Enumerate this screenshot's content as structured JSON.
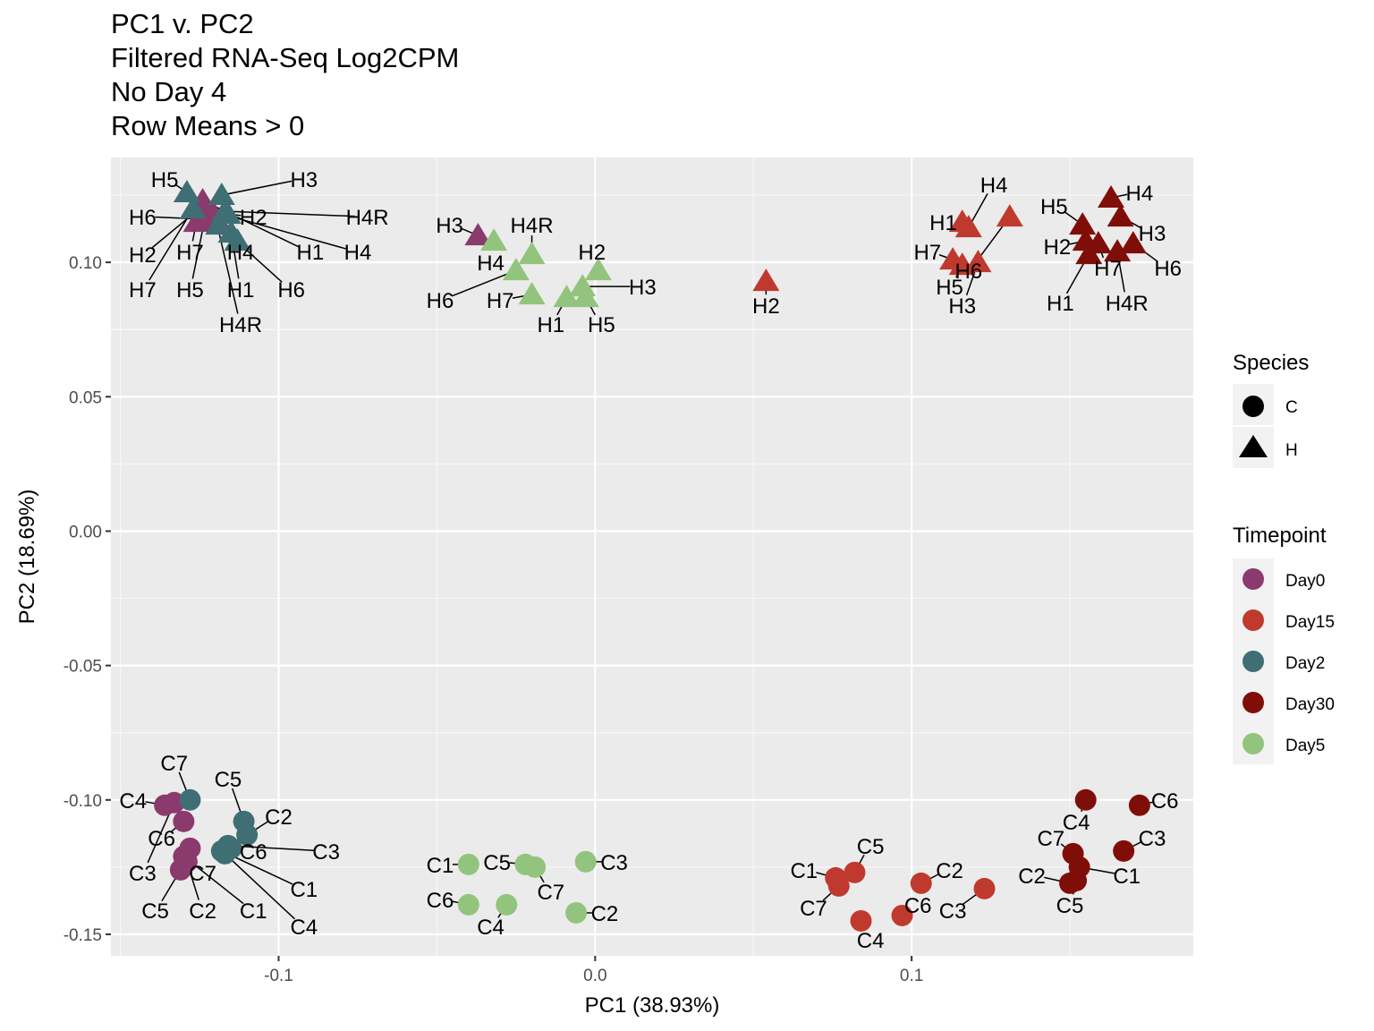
{
  "chart_data": {
    "type": "scatter",
    "title": [
      "PC1 v. PC2",
      "Filtered RNA-Seq Log2CPM",
      "No Day 4",
      "Row Means > 0"
    ],
    "xlabel": "PC1 (38.93%)",
    "ylabel": "PC2 (18.69%)",
    "xlim": [
      -0.153,
      0.189
    ],
    "ylim": [
      -0.158,
      0.139
    ],
    "x_ticks": [
      -0.1,
      0.0,
      0.1
    ],
    "x_tick_labels": [
      "-0.1",
      "0.0",
      "0.1"
    ],
    "y_ticks": [
      0.1,
      0.05,
      0.0,
      -0.05,
      -0.1,
      -0.15
    ],
    "y_tick_labels": [
      "0.10",
      "0.05",
      "0.00",
      "-0.05",
      "-0.10",
      "-0.15"
    ],
    "grid": true,
    "legend": [
      {
        "title": "Species",
        "position": "right",
        "entries": [
          {
            "label": "C",
            "shape": "circle"
          },
          {
            "label": "H",
            "shape": "triangle"
          }
        ]
      },
      {
        "title": "Timepoint",
        "position": "right",
        "entries": [
          {
            "label": "Day0",
            "color": "#8B3A6E"
          },
          {
            "label": "Day15",
            "color": "#C0392F"
          },
          {
            "label": "Day2",
            "color": "#3F6E74"
          },
          {
            "label": "Day30",
            "color": "#800E08"
          },
          {
            "label": "Day5",
            "color": "#93C47D"
          }
        ]
      }
    ],
    "colors": {
      "Day0": "#8B3A6E",
      "Day15": "#C0392F",
      "Day2": "#3F6E74",
      "Day30": "#800E08",
      "Day5": "#93C47D"
    },
    "series": [
      {
        "name": "Day0",
        "points": [
          {
            "label": "H3",
            "species": "H",
            "x": -0.037,
            "y": 0.11,
            "label_x": -0.046,
            "label_y": 0.114
          },
          {
            "label": "H1",
            "species": "H",
            "x": -0.124,
            "y": 0.123,
            "label_x": -0.09,
            "label_y": 0.104
          },
          {
            "label": "H2",
            "species": "H",
            "x": -0.125,
            "y": 0.12,
            "label_x": -0.143,
            "label_y": 0.103
          },
          {
            "label": "H7",
            "species": "H",
            "x": -0.126,
            "y": 0.115,
            "label_x": -0.128,
            "label_y": 0.104
          },
          {
            "label": "H5",
            "species": "H",
            "x": -0.123,
            "y": 0.118,
            "label_x": -0.128,
            "label_y": 0.09
          },
          {
            "label": "H6",
            "species": "H",
            "x": -0.122,
            "y": 0.116,
            "label_x": -0.143,
            "label_y": 0.117
          },
          {
            "label": "H4",
            "species": "H",
            "x": -0.121,
            "y": 0.119,
            "label_x": -0.075,
            "label_y": 0.104
          },
          {
            "label": "H4R",
            "species": "H",
            "x": -0.12,
            "y": 0.117,
            "label_x": -0.112,
            "label_y": 0.077
          },
          {
            "label": "C4",
            "species": "C",
            "x": -0.136,
            "y": -0.102,
            "label_x": -0.146,
            "label_y": -0.1
          },
          {
            "label": "C6",
            "species": "C",
            "x": -0.13,
            "y": -0.108,
            "label_x": -0.137,
            "label_y": -0.114
          },
          {
            "label": "C3",
            "species": "C",
            "x": -0.133,
            "y": -0.101,
            "label_x": -0.143,
            "label_y": -0.127
          },
          {
            "label": "C7",
            "species": "C",
            "x": -0.128,
            "y": -0.118,
            "label_x": -0.124,
            "label_y": -0.127
          },
          {
            "label": "C5",
            "species": "C",
            "x": -0.131,
            "y": -0.126,
            "label_x": -0.139,
            "label_y": -0.141
          },
          {
            "label": "C2",
            "species": "C",
            "x": -0.129,
            "y": -0.123,
            "label_x": -0.124,
            "label_y": -0.141
          },
          {
            "label": "C1",
            "species": "C",
            "x": -0.13,
            "y": -0.121,
            "label_x": -0.108,
            "label_y": -0.141
          }
        ]
      },
      {
        "name": "Day2",
        "points": [
          {
            "label": "H5",
            "species": "H",
            "x": -0.129,
            "y": 0.126,
            "label_x": -0.136,
            "label_y": 0.131
          },
          {
            "label": "H3",
            "species": "H",
            "x": -0.118,
            "y": 0.125,
            "label_x": -0.092,
            "label_y": 0.131
          },
          {
            "label": "H2",
            "species": "H",
            "x": -0.116,
            "y": 0.118,
            "label_x": -0.108,
            "label_y": 0.117
          },
          {
            "label": "H4R",
            "species": "H",
            "x": -0.117,
            "y": 0.119,
            "label_x": -0.072,
            "label_y": 0.117
          },
          {
            "label": "H1",
            "species": "H",
            "x": -0.115,
            "y": 0.111,
            "label_x": -0.112,
            "label_y": 0.09
          },
          {
            "label": "H4",
            "species": "H",
            "x": -0.113,
            "y": 0.108,
            "label_x": -0.112,
            "label_y": 0.104
          },
          {
            "label": "H6",
            "species": "H",
            "x": -0.119,
            "y": 0.114,
            "label_x": -0.096,
            "label_y": 0.09
          },
          {
            "label": "H7",
            "species": "H",
            "x": -0.127,
            "y": 0.12,
            "label_x": -0.143,
            "label_y": 0.09
          },
          {
            "label": "C7",
            "species": "C",
            "x": -0.128,
            "y": -0.1,
            "label_x": -0.133,
            "label_y": -0.086
          },
          {
            "label": "C5",
            "species": "C",
            "x": -0.111,
            "y": -0.108,
            "label_x": -0.116,
            "label_y": -0.092
          },
          {
            "label": "C2",
            "species": "C",
            "x": -0.11,
            "y": -0.113,
            "label_x": -0.1,
            "label_y": -0.106
          },
          {
            "label": "C6",
            "species": "C",
            "x": -0.115,
            "y": -0.118,
            "label_x": -0.108,
            "label_y": -0.119
          },
          {
            "label": "C3",
            "species": "C",
            "x": -0.116,
            "y": -0.117,
            "label_x": -0.085,
            "label_y": -0.119
          },
          {
            "label": "C1",
            "species": "C",
            "x": -0.118,
            "y": -0.119,
            "label_x": -0.092,
            "label_y": -0.133
          },
          {
            "label": "C4",
            "species": "C",
            "x": -0.117,
            "y": -0.12,
            "label_x": -0.092,
            "label_y": -0.147
          }
        ]
      },
      {
        "name": "Day5",
        "points": [
          {
            "label": "H4R",
            "species": "H",
            "x": -0.02,
            "y": 0.103,
            "label_x": -0.02,
            "label_y": 0.114
          },
          {
            "label": "H4",
            "species": "H",
            "x": -0.032,
            "y": 0.108,
            "label_x": -0.033,
            "label_y": 0.1
          },
          {
            "label": "H2",
            "species": "H",
            "x": 0.001,
            "y": 0.097,
            "label_x": -0.001,
            "label_y": 0.104
          },
          {
            "label": "H6",
            "species": "H",
            "x": -0.025,
            "y": 0.097,
            "label_x": -0.049,
            "label_y": 0.086
          },
          {
            "label": "H3",
            "species": "H",
            "x": -0.004,
            "y": 0.091,
            "label_x": 0.015,
            "label_y": 0.091
          },
          {
            "label": "H7",
            "species": "H",
            "x": -0.02,
            "y": 0.088,
            "label_x": -0.03,
            "label_y": 0.086
          },
          {
            "label": "H1",
            "species": "H",
            "x": -0.009,
            "y": 0.087,
            "label_x": -0.014,
            "label_y": 0.077
          },
          {
            "label": "H5",
            "species": "H",
            "x": -0.003,
            "y": 0.087,
            "label_x": 0.002,
            "label_y": 0.077
          },
          {
            "label": "C1",
            "species": "C",
            "x": -0.04,
            "y": -0.124,
            "label_x": -0.049,
            "label_y": -0.124
          },
          {
            "label": "C5",
            "species": "C",
            "x": -0.022,
            "y": -0.124,
            "label_x": -0.031,
            "label_y": -0.123
          },
          {
            "label": "C3",
            "species": "C",
            "x": -0.003,
            "y": -0.123,
            "label_x": 0.006,
            "label_y": -0.123
          },
          {
            "label": "C7",
            "species": "C",
            "x": -0.019,
            "y": -0.125,
            "label_x": -0.014,
            "label_y": -0.134
          },
          {
            "label": "C6",
            "species": "C",
            "x": -0.04,
            "y": -0.139,
            "label_x": -0.049,
            "label_y": -0.137
          },
          {
            "label": "C4",
            "species": "C",
            "x": -0.028,
            "y": -0.139,
            "label_x": -0.033,
            "label_y": -0.147
          },
          {
            "label": "C2",
            "species": "C",
            "x": -0.006,
            "y": -0.142,
            "label_x": 0.003,
            "label_y": -0.142
          }
        ]
      },
      {
        "name": "Day15",
        "points": [
          {
            "label": "H2",
            "species": "H",
            "x": 0.054,
            "y": 0.093,
            "label_x": 0.054,
            "label_y": 0.084
          },
          {
            "label": "H4",
            "species": "H",
            "x": 0.118,
            "y": 0.113,
            "label_x": 0.126,
            "label_y": 0.129
          },
          {
            "label": "H1",
            "species": "H",
            "x": 0.116,
            "y": 0.115,
            "label_x": 0.11,
            "label_y": 0.115
          },
          {
            "label": "H6",
            "species": "H",
            "x": 0.131,
            "y": 0.117,
            "label_x": 0.118,
            "label_y": 0.097
          },
          {
            "label": "H7",
            "species": "H",
            "x": 0.113,
            "y": 0.101,
            "label_x": 0.105,
            "label_y": 0.104
          },
          {
            "label": "H5",
            "species": "H",
            "x": 0.116,
            "y": 0.099,
            "label_x": 0.112,
            "label_y": 0.091
          },
          {
            "label": "H3",
            "species": "H",
            "x": 0.121,
            "y": 0.1,
            "label_x": 0.116,
            "label_y": 0.084
          },
          {
            "label": "C5",
            "species": "C",
            "x": 0.082,
            "y": -0.127,
            "label_x": 0.087,
            "label_y": -0.117
          },
          {
            "label": "C1",
            "species": "C",
            "x": 0.076,
            "y": -0.129,
            "label_x": 0.066,
            "label_y": -0.126
          },
          {
            "label": "C7",
            "species": "C",
            "x": 0.077,
            "y": -0.132,
            "label_x": 0.069,
            "label_y": -0.14
          },
          {
            "label": "C4",
            "species": "C",
            "x": 0.084,
            "y": -0.145,
            "label_x": 0.087,
            "label_y": -0.152
          },
          {
            "label": "C6",
            "species": "C",
            "x": 0.097,
            "y": -0.143,
            "label_x": 0.102,
            "label_y": -0.139
          },
          {
            "label": "C2",
            "species": "C",
            "x": 0.103,
            "y": -0.131,
            "label_x": 0.112,
            "label_y": -0.126
          },
          {
            "label": "C3",
            "species": "C",
            "x": 0.123,
            "y": -0.133,
            "label_x": 0.113,
            "label_y": -0.141
          }
        ]
      },
      {
        "name": "Day30",
        "points": [
          {
            "label": "H4",
            "species": "H",
            "x": 0.163,
            "y": 0.124,
            "label_x": 0.172,
            "label_y": 0.126
          },
          {
            "label": "H5",
            "species": "H",
            "x": 0.154,
            "y": 0.114,
            "label_x": 0.145,
            "label_y": 0.121
          },
          {
            "label": "H3",
            "species": "H",
            "x": 0.166,
            "y": 0.117,
            "label_x": 0.176,
            "label_y": 0.111
          },
          {
            "label": "H2",
            "species": "H",
            "x": 0.155,
            "y": 0.108,
            "label_x": 0.146,
            "label_y": 0.106
          },
          {
            "label": "H7",
            "species": "H",
            "x": 0.159,
            "y": 0.107,
            "label_x": 0.162,
            "label_y": 0.098
          },
          {
            "label": "H6",
            "species": "H",
            "x": 0.17,
            "y": 0.107,
            "label_x": 0.181,
            "label_y": 0.098
          },
          {
            "label": "H1",
            "species": "H",
            "x": 0.156,
            "y": 0.103,
            "label_x": 0.147,
            "label_y": 0.085
          },
          {
            "label": "H4R",
            "species": "H",
            "x": 0.165,
            "y": 0.104,
            "label_x": 0.168,
            "label_y": 0.085
          },
          {
            "label": "C4",
            "species": "C",
            "x": 0.155,
            "y": -0.1,
            "label_x": 0.152,
            "label_y": -0.108
          },
          {
            "label": "C6",
            "species": "C",
            "x": 0.172,
            "y": -0.102,
            "label_x": 0.18,
            "label_y": -0.1
          },
          {
            "label": "C3",
            "species": "C",
            "x": 0.167,
            "y": -0.119,
            "label_x": 0.176,
            "label_y": -0.114
          },
          {
            "label": "C7",
            "species": "C",
            "x": 0.151,
            "y": -0.12,
            "label_x": 0.144,
            "label_y": -0.114
          },
          {
            "label": "C1",
            "species": "C",
            "x": 0.153,
            "y": -0.125,
            "label_x": 0.168,
            "label_y": -0.128
          },
          {
            "label": "C2",
            "species": "C",
            "x": 0.15,
            "y": -0.131,
            "label_x": 0.138,
            "label_y": -0.128
          },
          {
            "label": "C5",
            "species": "C",
            "x": 0.152,
            "y": -0.13,
            "label_x": 0.15,
            "label_y": -0.139
          }
        ]
      }
    ]
  }
}
